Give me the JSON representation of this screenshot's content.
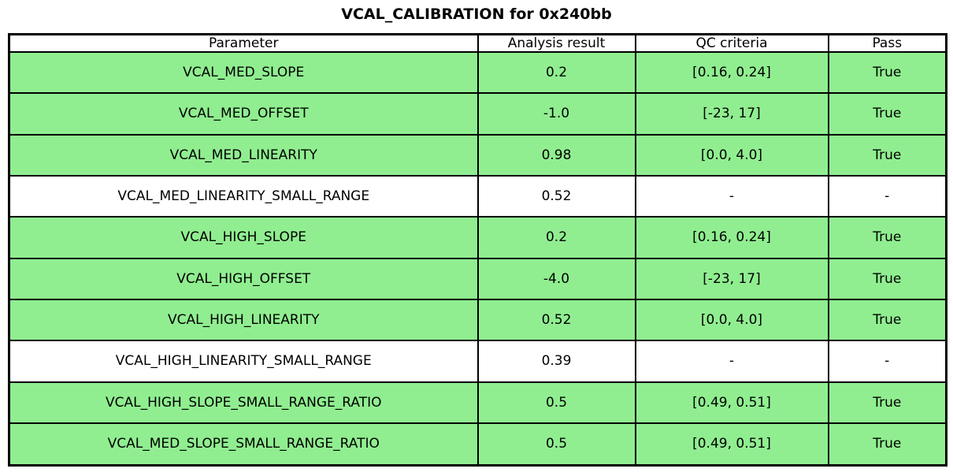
{
  "title": "VCAL_CALIBRATION for 0x240bb",
  "colors": {
    "pass_row_background": "#90EE90",
    "neutral_row_background": "#FFFFFF",
    "border": "#000000",
    "text": "#000000"
  },
  "table": {
    "columns": [
      "Parameter",
      "Analysis result",
      "QC criteria",
      "Pass"
    ],
    "rows": [
      {
        "parameter": "VCAL_MED_SLOPE",
        "analysis_result": "0.2",
        "qc_criteria": "[0.16, 0.24]",
        "pass": "True",
        "highlight": true
      },
      {
        "parameter": "VCAL_MED_OFFSET",
        "analysis_result": "-1.0",
        "qc_criteria": "[-23, 17]",
        "pass": "True",
        "highlight": true
      },
      {
        "parameter": "VCAL_MED_LINEARITY",
        "analysis_result": "0.98",
        "qc_criteria": "[0.0, 4.0]",
        "pass": "True",
        "highlight": true
      },
      {
        "parameter": "VCAL_MED_LINEARITY_SMALL_RANGE",
        "analysis_result": "0.52",
        "qc_criteria": "-",
        "pass": "-",
        "highlight": false
      },
      {
        "parameter": "VCAL_HIGH_SLOPE",
        "analysis_result": "0.2",
        "qc_criteria": "[0.16, 0.24]",
        "pass": "True",
        "highlight": true
      },
      {
        "parameter": "VCAL_HIGH_OFFSET",
        "analysis_result": "-4.0",
        "qc_criteria": "[-23, 17]",
        "pass": "True",
        "highlight": true
      },
      {
        "parameter": "VCAL_HIGH_LINEARITY",
        "analysis_result": "0.52",
        "qc_criteria": "[0.0, 4.0]",
        "pass": "True",
        "highlight": true
      },
      {
        "parameter": "VCAL_HIGH_LINEARITY_SMALL_RANGE",
        "analysis_result": "0.39",
        "qc_criteria": "-",
        "pass": "-",
        "highlight": false
      },
      {
        "parameter": "VCAL_HIGH_SLOPE_SMALL_RANGE_RATIO",
        "analysis_result": "0.5",
        "qc_criteria": "[0.49, 0.51]",
        "pass": "True",
        "highlight": true
      },
      {
        "parameter": "VCAL_MED_SLOPE_SMALL_RANGE_RATIO",
        "analysis_result": "0.5",
        "qc_criteria": "[0.49, 0.51]",
        "pass": "True",
        "highlight": true
      }
    ]
  },
  "chart_data": {
    "type": "table",
    "title": "VCAL_CALIBRATION for 0x240bb",
    "columns": [
      "Parameter",
      "Analysis result",
      "QC criteria",
      "Pass"
    ],
    "rows": [
      [
        "VCAL_MED_SLOPE",
        0.2,
        "[0.16, 0.24]",
        "True"
      ],
      [
        "VCAL_MED_OFFSET",
        -1.0,
        "[-23, 17]",
        "True"
      ],
      [
        "VCAL_MED_LINEARITY",
        0.98,
        "[0.0, 4.0]",
        "True"
      ],
      [
        "VCAL_MED_LINEARITY_SMALL_RANGE",
        0.52,
        "-",
        "-"
      ],
      [
        "VCAL_HIGH_SLOPE",
        0.2,
        "[0.16, 0.24]",
        "True"
      ],
      [
        "VCAL_HIGH_OFFSET",
        -4.0,
        "[-23, 17]",
        "True"
      ],
      [
        "VCAL_HIGH_LINEARITY",
        0.52,
        "[0.0, 4.0]",
        "True"
      ],
      [
        "VCAL_HIGH_LINEARITY_SMALL_RANGE",
        0.39,
        "-",
        "-"
      ],
      [
        "VCAL_HIGH_SLOPE_SMALL_RANGE_RATIO",
        0.5,
        "[0.49, 0.51]",
        "True"
      ],
      [
        "VCAL_MED_SLOPE_SMALL_RANGE_RATIO",
        0.5,
        "[0.49, 0.51]",
        "True"
      ]
    ],
    "layout_hints": {
      "grid": true,
      "highlighted_rows_color": "#90EE90",
      "highlighted_rows": [
        0,
        1,
        2,
        4,
        5,
        6,
        8,
        9
      ],
      "title_position": "top-center"
    }
  }
}
